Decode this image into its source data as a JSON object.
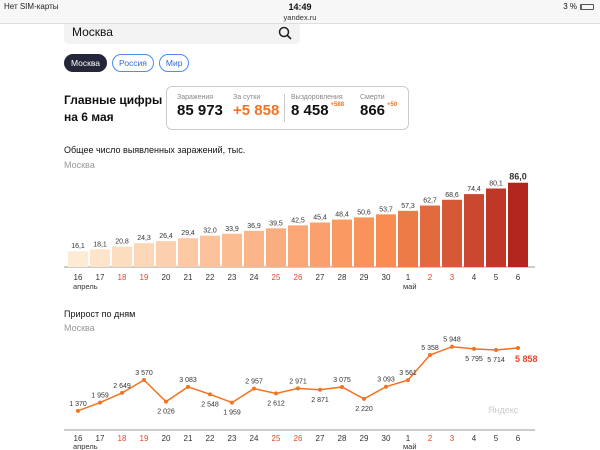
{
  "status_bar": {
    "carrier": "Нет SIM-карты",
    "time": "14:49",
    "url": "yandex.ru",
    "battery": "3 %"
  },
  "search": {
    "value": "Москва",
    "icon": "search-icon"
  },
  "region_tabs": [
    {
      "label": "Москва",
      "active": true
    },
    {
      "label": "Россия",
      "active": false
    },
    {
      "label": "Мир",
      "active": false
    }
  ],
  "main_figures": {
    "title_line1": "Главные цифры",
    "title_line2": "на 6 мая",
    "stats": [
      {
        "label": "Заражения",
        "value": "85 973",
        "delta": ""
      },
      {
        "label": "За сутки",
        "value": "+5 858",
        "delta": ""
      },
      {
        "label": "Выздоровления",
        "value": "8 458",
        "delta": "+588"
      },
      {
        "label": "Смерти",
        "value": "866",
        "delta": "+50"
      }
    ]
  },
  "chart_data": [
    {
      "type": "bar",
      "title": "Общее число выявленных заражений, тыс.",
      "subtitle": "Москва",
      "categories": [
        "16",
        "17",
        "18",
        "19",
        "20",
        "21",
        "22",
        "23",
        "24",
        "25",
        "26",
        "27",
        "28",
        "29",
        "30",
        "1",
        "2",
        "3",
        "4",
        "5",
        "6"
      ],
      "weekend": [
        false,
        false,
        true,
        true,
        false,
        false,
        false,
        false,
        false,
        true,
        true,
        false,
        false,
        false,
        false,
        false,
        true,
        true,
        false,
        false,
        false
      ],
      "month_labels": [
        {
          "at": "16",
          "label": "апрель"
        },
        {
          "at": "1",
          "label": "май"
        }
      ],
      "values": [
        16.1,
        18.1,
        20.8,
        24.3,
        26.4,
        29.4,
        32.0,
        33.9,
        36.9,
        39.5,
        42.5,
        45.4,
        48.4,
        50.6,
        53.7,
        57.3,
        62.7,
        68.6,
        74.4,
        80.1,
        86.0
      ],
      "value_labels": [
        "16,1",
        "18,1",
        "20,8",
        "24,3",
        "26,4",
        "29,4",
        "32,0",
        "33,9",
        "36,9",
        "39,5",
        "42,5",
        "45,4",
        "48,4",
        "50,6",
        "53,7",
        "57,3",
        "62,7",
        "68,6",
        "74,4",
        "80,1",
        "86,0"
      ],
      "colors": {
        "start": "#fdebd3",
        "end": "#b3261e"
      }
    },
    {
      "type": "line",
      "title": "Прирост по дням",
      "subtitle": "Москва",
      "categories": [
        "16",
        "17",
        "18",
        "19",
        "20",
        "21",
        "22",
        "23",
        "24",
        "25",
        "26",
        "27",
        "28",
        "29",
        "30",
        "1",
        "2",
        "3",
        "4",
        "5",
        "6"
      ],
      "values": [
        1370,
        1959,
        2649,
        3570,
        2026,
        3083,
        2548,
        1959,
        2957,
        2612,
        2971,
        2871,
        3075,
        2220,
        3093,
        3561,
        5358,
        5948,
        5795,
        5714,
        5858
      ],
      "value_labels": [
        "1 370",
        "1 959",
        "2 649",
        "3 570",
        "2 026",
        "3 083",
        "2 548",
        "1 959",
        "2 957",
        "2 612",
        "2 971",
        "2 871",
        "3 075",
        "2 220",
        "3 093",
        "3 561",
        "5 358",
        "5 948",
        "5 795",
        "5 714",
        "5 858"
      ],
      "label_below": [
        false,
        false,
        false,
        false,
        true,
        false,
        true,
        true,
        false,
        true,
        false,
        true,
        false,
        true,
        false,
        false,
        false,
        false,
        true,
        true,
        false
      ],
      "color": "#f37321",
      "highlight_color": "#e8442e"
    }
  ],
  "watermark": "Яндекс",
  "colors": {
    "accent": "#f37321",
    "weekend": "#e8442e",
    "chip_active": "#24263a"
  }
}
